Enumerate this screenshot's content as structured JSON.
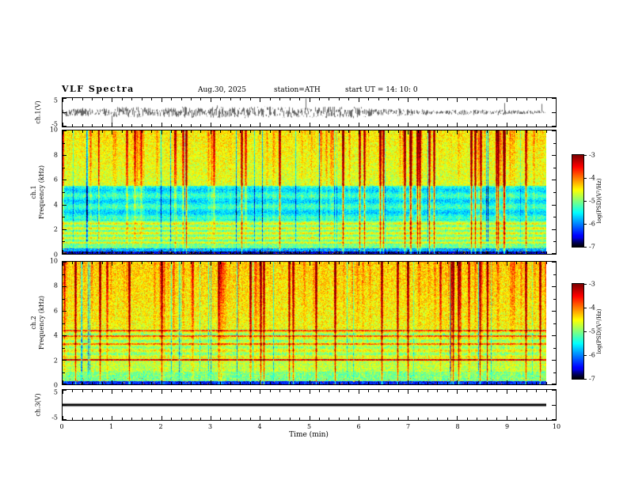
{
  "header": {
    "title": "VLF  Spectra",
    "date": "Aug.30, 2025",
    "station": "station=ATH",
    "start_ut": "start UT =  14: 10: 0"
  },
  "labels": {
    "ch1_wave": "ch.1(V)",
    "ch1_spec_line1": "ch.1",
    "ch1_spec_line2": "Frequency (kHz)",
    "ch2_spec_line1": "ch.2",
    "ch2_spec_line2": "Frequency (kHz)",
    "ch3_wave": "ch.3(V)",
    "time_axis": "Time  (min)",
    "colorbar": "log(PSD)(V²/Hz)"
  },
  "ticks": {
    "time": [
      "0",
      "1",
      "2",
      "3",
      "4",
      "5",
      "6",
      "7",
      "8",
      "9",
      "10"
    ],
    "wave_y_top": "5",
    "wave_y_bottom": "-5",
    "spec_y": [
      "10",
      "8",
      "6",
      "4",
      "2",
      "0"
    ],
    "colorbar": [
      "-3",
      "-4",
      "-5",
      "-6",
      "-7"
    ]
  },
  "colors": {
    "axis": "#000000",
    "background": "#ffffff",
    "trace": "#000000",
    "colormap": "jet (black → blue → cyan → green → yellow → red)"
  },
  "chart_data": [
    {
      "id": "ch1_waveform",
      "type": "line",
      "ylabel": "ch.1(V)",
      "ylim": [
        -5,
        5
      ],
      "yticks": [
        5,
        -5
      ],
      "xlim": [
        0,
        10
      ],
      "xlabel": "Time (min)",
      "series": [
        {
          "name": "ch.1 voltage",
          "description": "Continuous broadband noise centered on 0 V, typical envelope ±1–2 V with sporadic impulsive spikes reaching about ±3.5 V; record extends from 0 to ~9.8 min"
        }
      ],
      "grid": false
    },
    {
      "id": "ch1_spectrogram",
      "type": "heatmap",
      "ylabel": "ch.1 Frequency (kHz)",
      "ylim": [
        0,
        10
      ],
      "yticks": [
        0,
        2,
        4,
        6,
        8,
        10
      ],
      "xlim": [
        0,
        10
      ],
      "xlabel": "Time (min)",
      "value_label": "log(PSD)(V²/Hz)",
      "value_range": [
        -7,
        -3
      ],
      "colormap": "jet",
      "features": [
        "dense vertical broadband burst striations (yellow/orange/red) strongest above ~5 kHz",
        "darker blue band of reduced power between ~3 and 5.5 kHz with blue/dark vertical streaks",
        "horizontal cyan/green banding below ~2.5 kHz",
        "very low power (black/dark blue) below ~0.5 kHz with sporadic red impulses",
        "occasional dark dropout columns across all frequencies",
        "data ends at ~9.8 min, white beyond"
      ]
    },
    {
      "id": "ch2_spectrogram",
      "type": "heatmap",
      "ylabel": "ch.2 Frequency (kHz)",
      "ylim": [
        0,
        10
      ],
      "yticks": [
        0,
        2,
        4,
        6,
        8,
        10
      ],
      "xlim": [
        0,
        10
      ],
      "xlabel": "Time (min)",
      "value_label": "log(PSD)(V²/Hz)",
      "value_range": [
        -7,
        -3
      ],
      "colormap": "jet",
      "features": [
        "persistent narrowband orange/red line near 2.0 kHz across entire record",
        "fainter orange horizontal lines near ~3.3, ~3.9 and ~4.4 kHz",
        "generally green/yellow-green background with yellow burst columns, brightest near the top",
        "scattered dark vertical dropout columns",
        "very low power (dark) below ~0.4 kHz",
        "data ends at ~9.8 min, white beyond"
      ]
    },
    {
      "id": "ch3_waveform",
      "type": "line",
      "ylabel": "ch.3(V)",
      "ylim": [
        -5,
        5
      ],
      "yticks": [
        5,
        -5
      ],
      "xlim": [
        0,
        10
      ],
      "xlabel": "Time (min)",
      "series": [
        {
          "name": "ch.3 voltage",
          "description": "Flat constant trace at 0 V (thick black line) from 0 to ~9.8 min"
        }
      ],
      "grid": false
    }
  ]
}
